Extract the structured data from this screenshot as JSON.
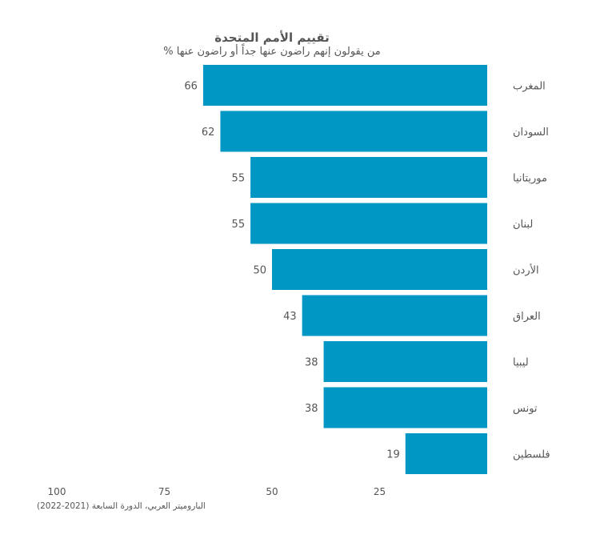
{
  "chart_data": {
    "type": "bar",
    "orientation": "horizontal",
    "title": "تقييم الأمم المتحدة",
    "subtitle": "% من يقولون إنهم راضون عنها جداً أو راضون عنها",
    "categories": [
      "المغرب",
      "السودان",
      "موريتانيا",
      "لبنان",
      "الأردن",
      "العراق",
      "ليبيا",
      "تونس",
      "فلسطين"
    ],
    "values": [
      66,
      62,
      55,
      55,
      50,
      43,
      38,
      38,
      19
    ],
    "xlim": [
      0,
      100
    ],
    "x_reversed": true,
    "x_ticks": [
      100,
      75,
      50,
      25
    ],
    "bar_color": "#0097c4",
    "grid": false,
    "legend": "none"
  },
  "source": "الباروميتر العربي، الدورة السابعة (2021-2022)"
}
